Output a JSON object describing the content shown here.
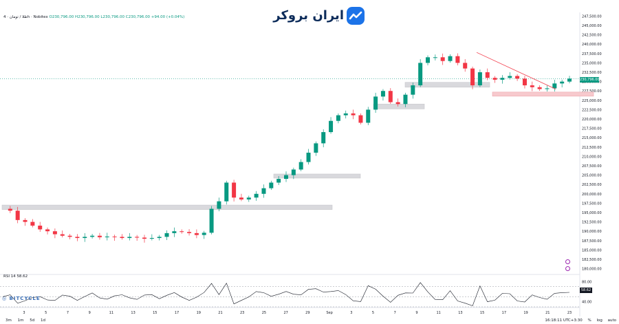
{
  "header": {
    "symbol": "طلا / تومان · 4h · Nobitex",
    "ohlc": "O230,796.00 H230,796.00 L230,796.00 C230,796.00 +94.00 (+0.04%)"
  },
  "logo": {
    "text": "ایران بروکر"
  },
  "rsi": {
    "label": "RSI 14",
    "value": "58.62"
  },
  "watermark": "BITCYCLE",
  "footer": {
    "ranges": [
      "3m",
      "1m",
      "5d",
      "1d"
    ],
    "time": "16:18:11 UTC+3:30",
    "percent": "%",
    "log": "log",
    "auto": "auto"
  },
  "colors": {
    "up": "#089981",
    "down": "#f23645",
    "zone": "#d9d9dd",
    "zone_red": "#f7c9cd",
    "trendline": "#f23645"
  },
  "chart_data": {
    "type": "candlestick",
    "x_ticks": [
      "3",
      "5",
      "7",
      "9",
      "11",
      "13",
      "15",
      "17",
      "19",
      "21",
      "23",
      "25",
      "27",
      "29",
      "Sep",
      "3",
      "5",
      "7",
      "9",
      "11",
      "13",
      "15",
      "17",
      "19",
      "21",
      "23"
    ],
    "y_ticks": [
      180000,
      182500,
      185000,
      187500,
      190000,
      192500,
      195000,
      197500,
      200000,
      202500,
      205000,
      207500,
      210000,
      212500,
      215000,
      217500,
      220000,
      222500,
      225000,
      227500,
      230000,
      232500,
      235000,
      237500,
      240000,
      242500,
      245000,
      247500
    ],
    "ylim": [
      179000,
      248500
    ],
    "last_price": "230,796.00",
    "approx_close_path": [
      196000,
      195500,
      193000,
      192500,
      191500,
      190500,
      190000,
      189200,
      188800,
      188500,
      188200,
      188500,
      188800,
      188400,
      188600,
      188500,
      188200,
      188500,
      188300,
      188000,
      188200,
      188500,
      189500,
      190000,
      189800,
      189500,
      189000,
      189600,
      196000,
      198000,
      203000,
      199000,
      198500,
      199000,
      200000,
      201500,
      203000,
      204000,
      205000,
      206500,
      208500,
      211000,
      213500,
      216500,
      219500,
      221000,
      221500,
      221000,
      219000,
      222500,
      226000,
      227500,
      224500,
      224000,
      226500,
      229000,
      235000,
      236500,
      236500,
      235500,
      236800,
      235000,
      233500,
      229000,
      232500,
      231000,
      230500,
      231000,
      231500,
      230800,
      229000,
      228500,
      228000,
      228200,
      229500,
      230000,
      230796
    ],
    "zones": [
      {
        "from": 195800,
        "to": 197000
      },
      {
        "from": 204200,
        "to": 205300
      },
      {
        "from": 222700,
        "to": 224000
      },
      {
        "from": 228500,
        "to": 229800
      },
      {
        "from": 226100,
        "to": 227200
      }
    ],
    "trendline": [
      [
        237800
      ],
      [
        228000
      ]
    ],
    "rsi": {
      "ylim": [
        30,
        90
      ],
      "ticks": [
        40,
        60,
        80
      ],
      "levels": [
        70,
        50,
        30
      ],
      "last": 58.62
    }
  }
}
